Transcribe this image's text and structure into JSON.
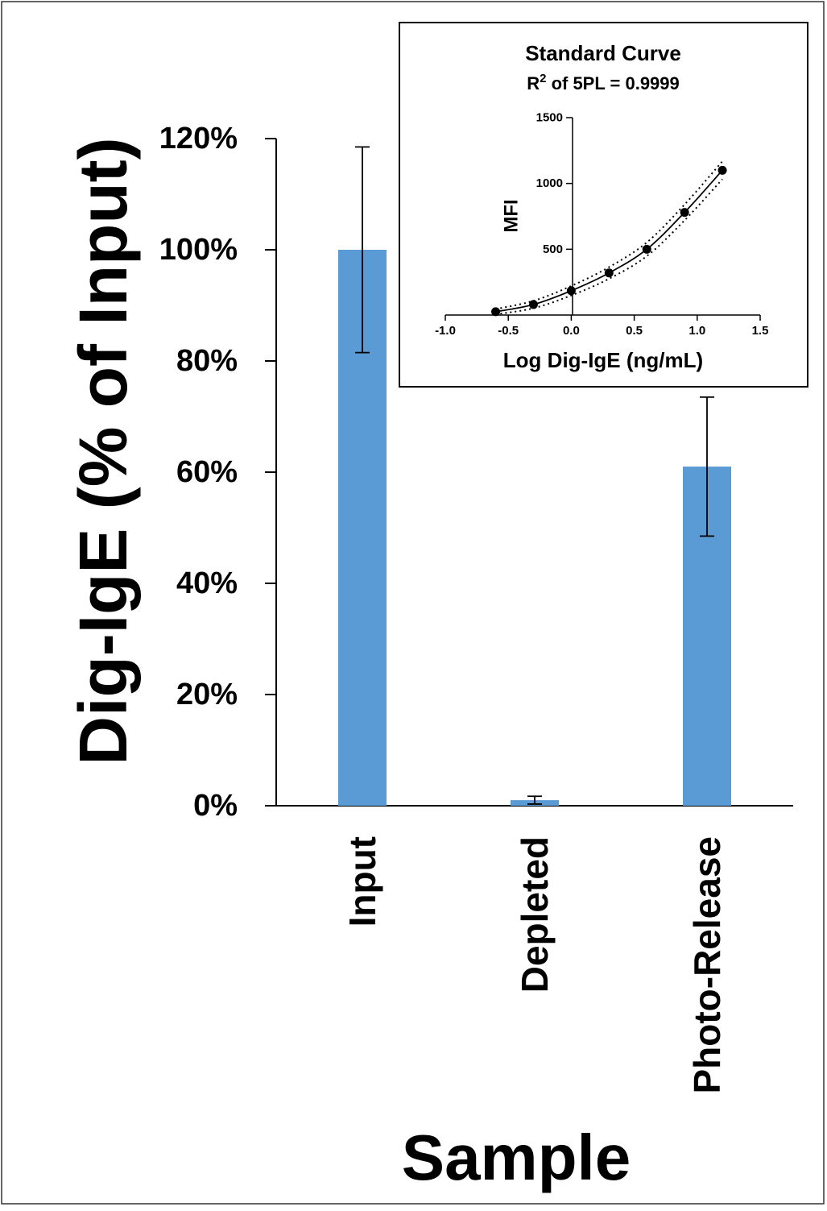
{
  "chart_data": [
    {
      "type": "bar",
      "categories": [
        "Input",
        "Depleted",
        "Photo-Release"
      ],
      "values": [
        1.0,
        0.01,
        0.61
      ],
      "error": [
        0.185,
        0.007,
        0.125
      ],
      "ylim": [
        0,
        1.2
      ],
      "yticks": [
        "0%",
        "20%",
        "40%",
        "60%",
        "80%",
        "100%",
        "120%"
      ],
      "ylabel": "Dig-IgE (% of Input)",
      "xlabel": "Sample",
      "grid": false,
      "colors": {
        "bar": "#5b9bd5",
        "error": "#000000"
      }
    },
    {
      "type": "scatter",
      "title": "Standard Curve",
      "subtitle": {
        "prefix": "R",
        "sup": "2",
        "suffix": " of 5PL = 0.9999"
      },
      "xlabel": "Log Dig-IgE (ng/mL)",
      "ylabel": "MFI",
      "xlim": [
        -1.0,
        1.5
      ],
      "ylim": [
        0,
        1500
      ],
      "xticks": [
        "-1.0",
        "-0.5",
        "0.0",
        "0.5",
        "1.0",
        "1.5"
      ],
      "yticks": [
        "500",
        "1000",
        "1500"
      ],
      "points": {
        "x": [
          -0.6,
          -0.3,
          0.0,
          0.3,
          0.6,
          0.9,
          1.2
        ],
        "y": [
          25,
          80,
          185,
          320,
          500,
          780,
          1100
        ]
      },
      "fit_curve": true,
      "confidence_band": true,
      "grid": false
    }
  ]
}
